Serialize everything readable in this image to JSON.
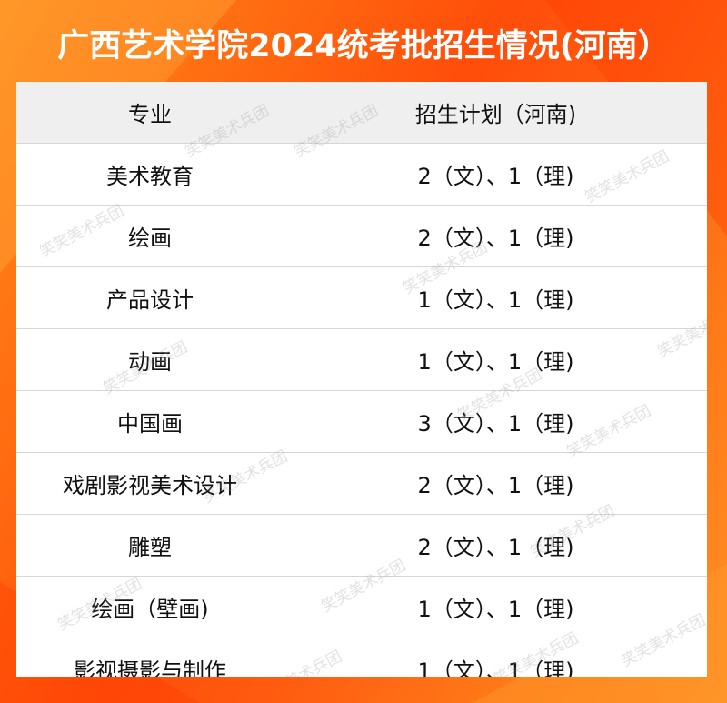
{
  "title": "广西艺术学院2024统考批招生情况(河南）",
  "table": {
    "headers": [
      "专业",
      "招生计划（河南)"
    ],
    "rows": [
      [
        "美术教育",
        "2（文）、1（理)"
      ],
      [
        "绘画",
        "2（文）、1（理)"
      ],
      [
        "产品设计",
        "1（文）、1（理)"
      ],
      [
        "动画",
        "1（文）、1（理)"
      ],
      [
        "中国画",
        "3（文）、1（理)"
      ],
      [
        "戏剧影视美术设计",
        "2（文）、1（理)"
      ],
      [
        "雕塑",
        "2（文）、1（理)"
      ],
      [
        "绘画（壁画)",
        "1（文）、1（理)"
      ],
      [
        "影视摄影与制作",
        "1（文）、1（理)"
      ]
    ]
  },
  "watermark": "笑笑美术兵团",
  "colors": {
    "background": "#ff5a0e",
    "header_bg": "#efefef",
    "title": "#ffffff"
  }
}
